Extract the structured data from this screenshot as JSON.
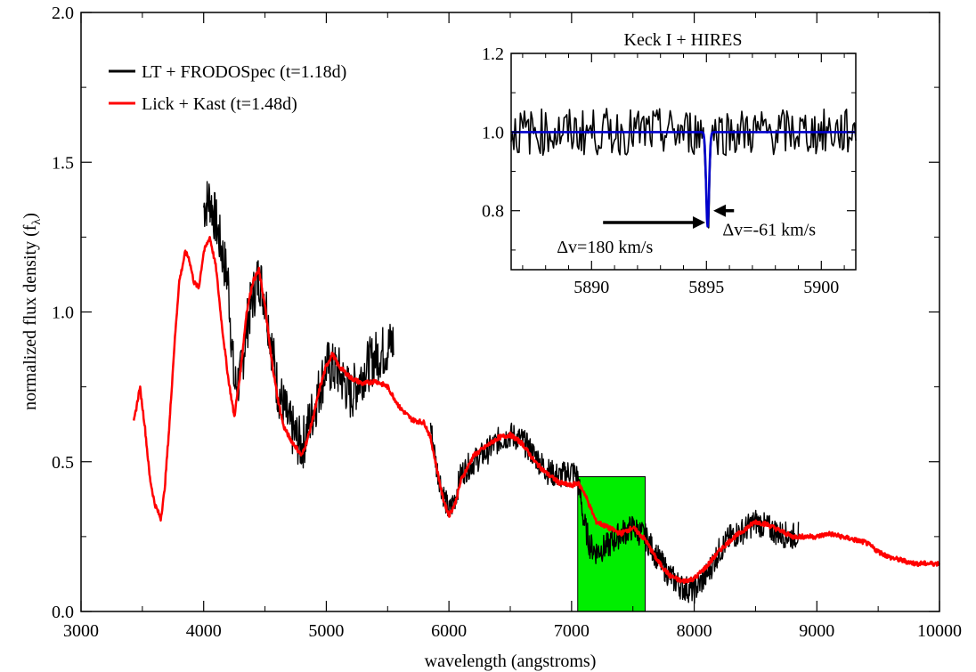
{
  "chart_data": [
    {
      "type": "line",
      "title": "",
      "xlabel": "wavelength (angstroms)",
      "ylabel": "normalized flux density (f",
      "ylabel_subscript": "λ",
      "ylabel_close": ")",
      "xlim": [
        3000,
        10000
      ],
      "ylim": [
        0.0,
        2.0
      ],
      "xticks": [
        "3000",
        "4000",
        "5000",
        "6000",
        "7000",
        "8000",
        "9000",
        "10000"
      ],
      "yticks": [
        "0.0",
        "0.5",
        "1.0",
        "1.5",
        "2.0"
      ],
      "grid": false,
      "legend": {
        "position": "top-left"
      },
      "highlight_band": {
        "x0": 7050,
        "x1": 7600,
        "y0": 0.0,
        "y1": 0.45,
        "color": "#00ee00"
      },
      "series": [
        {
          "name": "LT + FRODOSpec (t=1.18d)",
          "color": "#000000",
          "noise": 0.09,
          "x": [
            4000,
            4050,
            4100,
            4150,
            4200,
            4250,
            4300,
            4350,
            4400,
            4450,
            4500,
            4550,
            4600,
            4700,
            4800,
            4900,
            5000,
            5100,
            5200,
            5300,
            5400,
            5500,
            5550
          ],
          "y": [
            1.35,
            1.38,
            1.3,
            1.2,
            1.1,
            0.75,
            0.78,
            0.95,
            1.05,
            1.12,
            1.05,
            0.9,
            0.75,
            0.62,
            0.55,
            0.68,
            0.82,
            0.8,
            0.72,
            0.8,
            0.85,
            0.88,
            0.9
          ]
        },
        {
          "name": "",
          "color": "#000000",
          "noise": 0.045,
          "x": [
            5850,
            5900,
            5950,
            6000,
            6050,
            6100,
            6200,
            6300,
            6400,
            6500,
            6600,
            6700,
            6800,
            6900,
            7000,
            7050,
            7100,
            7150,
            7200,
            7300,
            7400,
            7500,
            7600,
            7700,
            7800,
            7900,
            8000,
            8100,
            8200,
            8300,
            8400,
            8500,
            8600,
            8700,
            8800,
            8850
          ],
          "y": [
            0.62,
            0.48,
            0.4,
            0.33,
            0.38,
            0.46,
            0.5,
            0.53,
            0.57,
            0.59,
            0.57,
            0.52,
            0.47,
            0.45,
            0.47,
            0.45,
            0.3,
            0.22,
            0.2,
            0.22,
            0.26,
            0.28,
            0.25,
            0.18,
            0.12,
            0.08,
            0.07,
            0.12,
            0.2,
            0.25,
            0.27,
            0.3,
            0.28,
            0.26,
            0.25,
            0.26
          ]
        },
        {
          "name": "Lick + Kast (t=1.48d)",
          "color": "#ff0000",
          "noise": 0.008,
          "x": [
            3430,
            3480,
            3520,
            3560,
            3600,
            3650,
            3680,
            3720,
            3760,
            3800,
            3850,
            3880,
            3920,
            3960,
            4000,
            4050,
            4100,
            4150,
            4200,
            4250,
            4300,
            4350,
            4400,
            4450,
            4500,
            4550,
            4600,
            4650,
            4700,
            4750,
            4800,
            4850,
            4900,
            4950,
            5000,
            5050,
            5100,
            5150,
            5200,
            5250,
            5300,
            5400,
            5500,
            5600,
            5700,
            5800,
            5850,
            5900,
            5950,
            6000,
            6050,
            6100,
            6200,
            6300,
            6400,
            6500,
            6600,
            6700,
            6800,
            6900,
            7000,
            7050,
            7100,
            7150,
            7200,
            7300,
            7400,
            7500,
            7600,
            7700,
            7800,
            7900,
            8000,
            8100,
            8200,
            8300,
            8400,
            8500,
            8600,
            8700,
            8800,
            8900,
            9000,
            9100,
            9200,
            9300,
            9400,
            9500,
            9600,
            9700,
            9800,
            9900,
            10000
          ],
          "y": [
            0.63,
            0.75,
            0.62,
            0.45,
            0.36,
            0.31,
            0.4,
            0.62,
            0.88,
            1.1,
            1.2,
            1.18,
            1.1,
            1.08,
            1.2,
            1.25,
            1.15,
            0.95,
            0.78,
            0.65,
            0.8,
            1.0,
            1.1,
            1.14,
            1.02,
            0.85,
            0.72,
            0.62,
            0.58,
            0.55,
            0.52,
            0.58,
            0.66,
            0.75,
            0.82,
            0.86,
            0.82,
            0.8,
            0.78,
            0.77,
            0.76,
            0.77,
            0.75,
            0.68,
            0.64,
            0.63,
            0.58,
            0.48,
            0.38,
            0.32,
            0.36,
            0.44,
            0.52,
            0.55,
            0.58,
            0.59,
            0.56,
            0.5,
            0.46,
            0.43,
            0.42,
            0.43,
            0.4,
            0.35,
            0.3,
            0.28,
            0.26,
            0.28,
            0.24,
            0.17,
            0.12,
            0.1,
            0.11,
            0.15,
            0.2,
            0.24,
            0.27,
            0.3,
            0.29,
            0.27,
            0.25,
            0.25,
            0.25,
            0.26,
            0.25,
            0.24,
            0.23,
            0.2,
            0.18,
            0.17,
            0.16,
            0.16,
            0.16
          ]
        }
      ]
    },
    {
      "type": "line",
      "title": "Keck I + HIRES",
      "xlabel": "",
      "ylabel": "",
      "xlim": [
        5886.5,
        5901.5
      ],
      "ylim": [
        0.65,
        1.2
      ],
      "xticks": [
        "5890",
        "5895",
        "5900"
      ],
      "yticks": [
        "0.8",
        "1.0",
        "1.2"
      ],
      "grid": false,
      "series": [
        {
          "name": "",
          "color": "#000000",
          "baseline": 1.0,
          "noise": 0.06,
          "x_start": 5886.5,
          "x_end": 5901.5,
          "dip_center": 5895.05,
          "dip_depth": 0.25
        },
        {
          "name": "",
          "color": "#0000cc",
          "baseline": 1.0,
          "x_start": 5886.5,
          "x_end": 5901.5,
          "dip_center": 5895.05,
          "dip_depth": 0.24
        }
      ],
      "annotations": [
        {
          "text": "Δv=180 km/s",
          "arrow_from": 5890.5,
          "arrow_to": 5894.95,
          "y": 0.77
        },
        {
          "text": "Δv=-61 km/s",
          "arrow_from": 5896.2,
          "arrow_to": 5895.3,
          "y": 0.8
        }
      ]
    }
  ]
}
